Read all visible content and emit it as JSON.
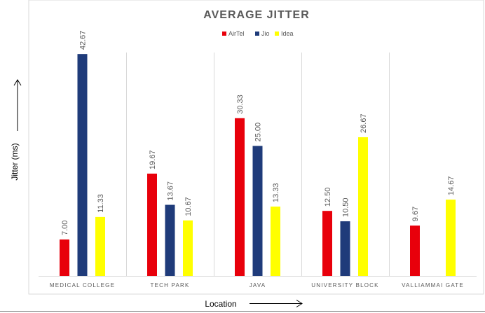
{
  "chart_data": {
    "type": "bar",
    "title": "AVERAGE JITTER",
    "xlabel": "Location",
    "ylabel": "Jitter (ms)",
    "ylim": [
      0,
      47
    ],
    "grid": "vertical category dividers",
    "legend_position": "top",
    "categories": [
      "MEDICAL COLLEGE",
      "TECH PARK",
      "JAVA",
      "UNIVERSITY BLOCK",
      "VALLIAMMAI GATE"
    ],
    "series": [
      {
        "name": "AirTel",
        "color": "#e8000b",
        "values": [
          7.0,
          19.67,
          30.33,
          12.5,
          9.67
        ],
        "labels": [
          "7.00",
          "19.67",
          "30.33",
          "12.50",
          "9.67"
        ]
      },
      {
        "name": "Jio",
        "color": "#1f3b7a",
        "values": [
          42.67,
          13.67,
          25.0,
          10.5,
          null
        ],
        "labels": [
          "42.67",
          "13.67",
          "25.00",
          "10.50",
          ""
        ]
      },
      {
        "name": "Idea",
        "color": "#ffff00",
        "values": [
          11.33,
          10.67,
          13.33,
          26.67,
          14.67
        ],
        "labels": [
          "11.33",
          "10.67",
          "13.33",
          "26.67",
          "14.67"
        ]
      }
    ]
  }
}
